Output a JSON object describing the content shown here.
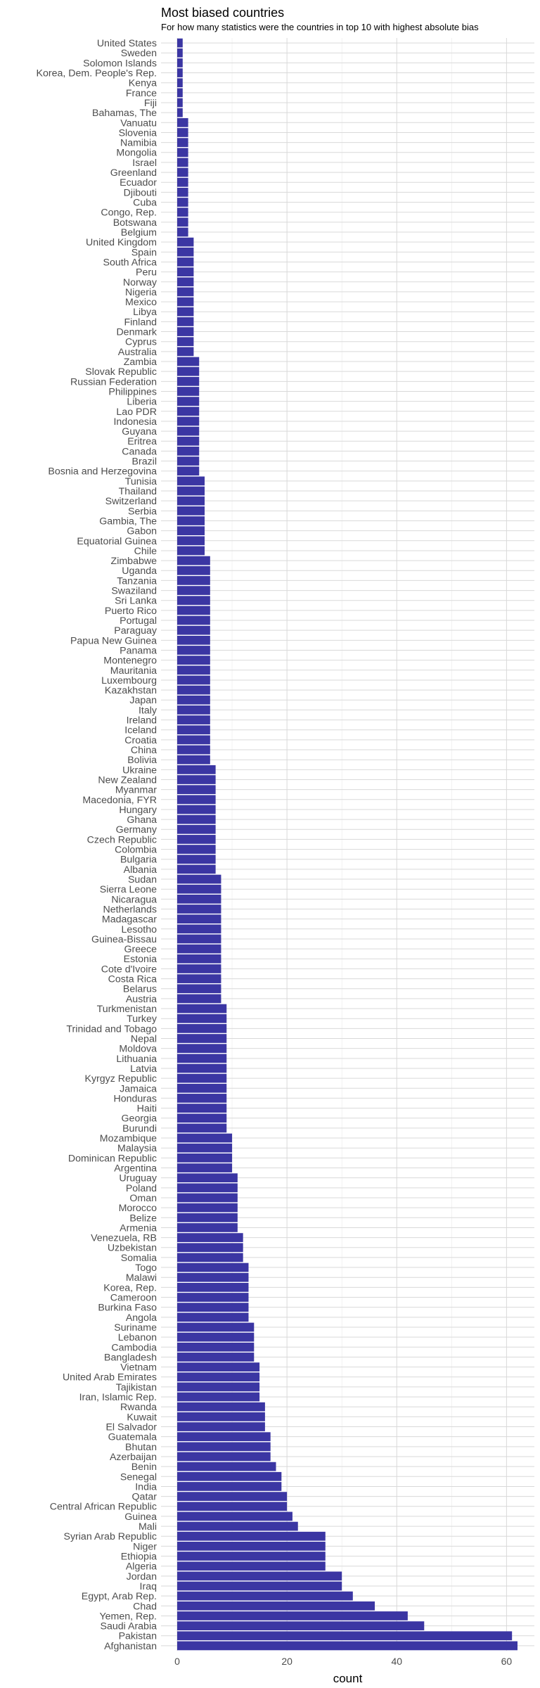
{
  "chart_data": {
    "type": "bar",
    "orientation": "horizontal",
    "title": "Most biased countries",
    "subtitle": "For how many statistics were the countries in top 10 with highest absolute bias",
    "xlabel": "count",
    "ylabel": "",
    "xlim": [
      0,
      65
    ],
    "xticks": [
      0,
      20,
      40,
      60
    ],
    "grid": true,
    "bar_color": "#3b36a3",
    "categories": [
      "United States",
      "Sweden",
      "Solomon Islands",
      "Korea, Dem. People's Rep.",
      "Kenya",
      "France",
      "Fiji",
      "Bahamas, The",
      "Vanuatu",
      "Slovenia",
      "Namibia",
      "Mongolia",
      "Israel",
      "Greenland",
      "Ecuador",
      "Djibouti",
      "Cuba",
      "Congo, Rep.",
      "Botswana",
      "Belgium",
      "United Kingdom",
      "Spain",
      "South Africa",
      "Peru",
      "Norway",
      "Nigeria",
      "Mexico",
      "Libya",
      "Finland",
      "Denmark",
      "Cyprus",
      "Australia",
      "Zambia",
      "Slovak Republic",
      "Russian Federation",
      "Philippines",
      "Liberia",
      "Lao PDR",
      "Indonesia",
      "Guyana",
      "Eritrea",
      "Canada",
      "Brazil",
      "Bosnia and Herzegovina",
      "Tunisia",
      "Thailand",
      "Switzerland",
      "Serbia",
      "Gambia, The",
      "Gabon",
      "Equatorial Guinea",
      "Chile",
      "Zimbabwe",
      "Uganda",
      "Tanzania",
      "Swaziland",
      "Sri Lanka",
      "Puerto Rico",
      "Portugal",
      "Paraguay",
      "Papua New Guinea",
      "Panama",
      "Montenegro",
      "Mauritania",
      "Luxembourg",
      "Kazakhstan",
      "Japan",
      "Italy",
      "Ireland",
      "Iceland",
      "Croatia",
      "China",
      "Bolivia",
      "Ukraine",
      "New Zealand",
      "Myanmar",
      "Macedonia, FYR",
      "Hungary",
      "Ghana",
      "Germany",
      "Czech Republic",
      "Colombia",
      "Bulgaria",
      "Albania",
      "Sudan",
      "Sierra Leone",
      "Nicaragua",
      "Netherlands",
      "Madagascar",
      "Lesotho",
      "Guinea-Bissau",
      "Greece",
      "Estonia",
      "Cote d'Ivoire",
      "Costa Rica",
      "Belarus",
      "Austria",
      "Turkmenistan",
      "Turkey",
      "Trinidad and Tobago",
      "Nepal",
      "Moldova",
      "Lithuania",
      "Latvia",
      "Kyrgyz Republic",
      "Jamaica",
      "Honduras",
      "Haiti",
      "Georgia",
      "Burundi",
      "Mozambique",
      "Malaysia",
      "Dominican Republic",
      "Argentina",
      "Uruguay",
      "Poland",
      "Oman",
      "Morocco",
      "Belize",
      "Armenia",
      "Venezuela, RB",
      "Uzbekistan",
      "Somalia",
      "Togo",
      "Malawi",
      "Korea, Rep.",
      "Cameroon",
      "Burkina Faso",
      "Angola",
      "Suriname",
      "Lebanon",
      "Cambodia",
      "Bangladesh",
      "Vietnam",
      "United Arab Emirates",
      "Tajikistan",
      "Iran, Islamic Rep.",
      "Rwanda",
      "Kuwait",
      "El Salvador",
      "Guatemala",
      "Bhutan",
      "Azerbaijan",
      "Benin",
      "Senegal",
      "India",
      "Qatar",
      "Central African Republic",
      "Guinea",
      "Mali",
      "Syrian Arab Republic",
      "Niger",
      "Ethiopia",
      "Algeria",
      "Jordan",
      "Iraq",
      "Egypt, Arab Rep.",
      "Chad",
      "Yemen, Rep.",
      "Saudi Arabia",
      "Pakistan",
      "Afghanistan"
    ],
    "values": [
      1,
      1,
      1,
      1,
      1,
      1,
      1,
      1,
      2,
      2,
      2,
      2,
      2,
      2,
      2,
      2,
      2,
      2,
      2,
      2,
      3,
      3,
      3,
      3,
      3,
      3,
      3,
      3,
      3,
      3,
      3,
      3,
      4,
      4,
      4,
      4,
      4,
      4,
      4,
      4,
      4,
      4,
      4,
      4,
      5,
      5,
      5,
      5,
      5,
      5,
      5,
      5,
      6,
      6,
      6,
      6,
      6,
      6,
      6,
      6,
      6,
      6,
      6,
      6,
      6,
      6,
      6,
      6,
      6,
      6,
      6,
      6,
      6,
      7,
      7,
      7,
      7,
      7,
      7,
      7,
      7,
      7,
      7,
      7,
      8,
      8,
      8,
      8,
      8,
      8,
      8,
      8,
      8,
      8,
      8,
      8,
      8,
      9,
      9,
      9,
      9,
      9,
      9,
      9,
      9,
      9,
      9,
      9,
      9,
      9,
      10,
      10,
      10,
      10,
      11,
      11,
      11,
      11,
      11,
      11,
      12,
      12,
      12,
      13,
      13,
      13,
      13,
      13,
      13,
      14,
      14,
      14,
      14,
      15,
      15,
      15,
      15,
      16,
      16,
      16,
      17,
      17,
      17,
      18,
      19,
      19,
      20,
      20,
      21,
      22,
      27,
      27,
      27,
      27,
      30,
      30,
      32,
      36,
      42,
      45,
      61,
      62
    ]
  }
}
